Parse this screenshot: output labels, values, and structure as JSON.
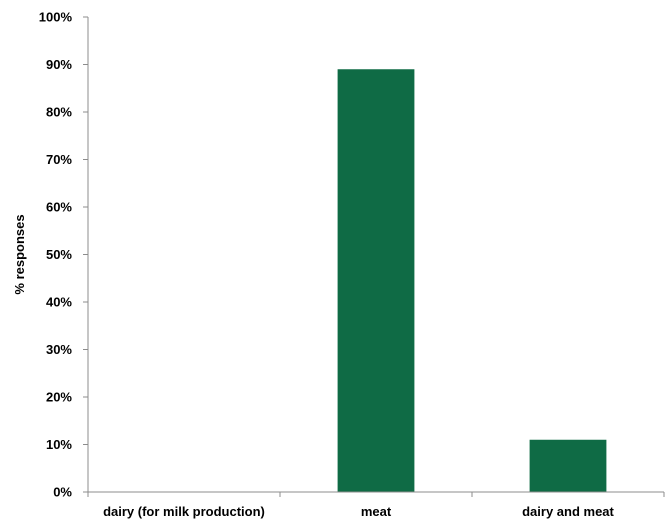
{
  "chart_data": {
    "type": "bar",
    "title": "",
    "xlabel": "",
    "ylabel": "% responses",
    "categories": [
      "dairy (for milk production)",
      "meat",
      "dairy and meat"
    ],
    "values": [
      0,
      89,
      11
    ],
    "ylim": [
      0,
      100
    ],
    "yticks": [
      "0%",
      "10%",
      "20%",
      "30%",
      "40%",
      "50%",
      "60%",
      "70%",
      "80%",
      "90%",
      "100%"
    ],
    "grid": false,
    "legend": "none",
    "bar_color": "#0f6b45"
  }
}
